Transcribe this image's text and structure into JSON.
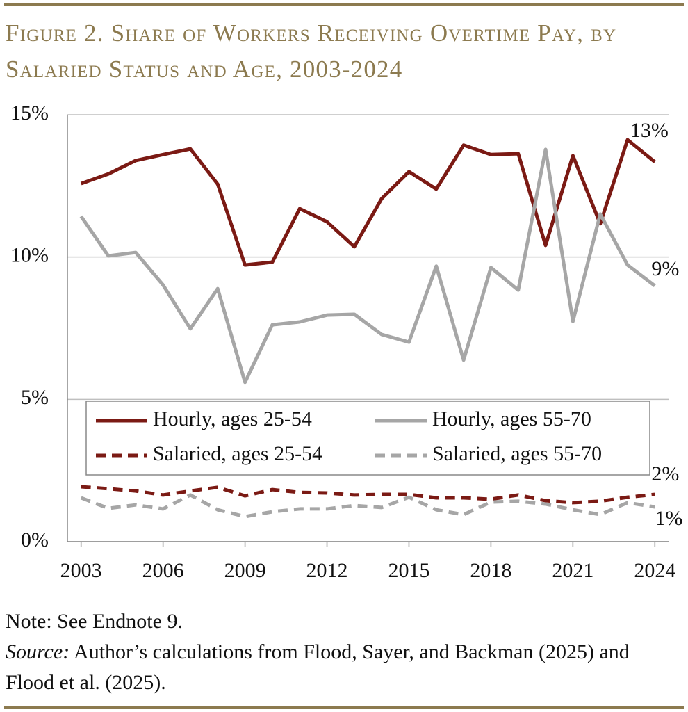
{
  "chart_data": {
    "type": "line",
    "title": "Figure 2. Share of Workers Receiving Overtime Pay, by Salaried Status and Age, 2003-2024",
    "x": [
      2003,
      2004,
      2005,
      2006,
      2007,
      2008,
      2009,
      2010,
      2011,
      2012,
      2013,
      2014,
      2015,
      2016,
      2017,
      2018,
      2019,
      2020,
      2021,
      2022,
      2023,
      2024
    ],
    "xlim": [
      2002.5,
      2024.5
    ],
    "xticks": [
      2003,
      2006,
      2009,
      2012,
      2015,
      2018,
      2021,
      2024
    ],
    "ylim": [
      0,
      15
    ],
    "yticks": [
      {
        "value": 0,
        "label": "0%"
      },
      {
        "value": 5,
        "label": "5%"
      },
      {
        "value": 10,
        "label": "10%"
      },
      {
        "value": 15,
        "label": "15%"
      }
    ],
    "grid": true,
    "series": [
      {
        "name": "Hourly, ages 25-54",
        "color": "#7b1a14",
        "dash": false,
        "end_label": "13%",
        "values": [
          12.58,
          12.92,
          13.39,
          13.6,
          13.8,
          12.56,
          9.72,
          9.82,
          11.7,
          11.24,
          10.36,
          12.05,
          13.0,
          12.39,
          13.93,
          13.6,
          13.63,
          10.41,
          13.56,
          11.17,
          14.12,
          13.34
        ]
      },
      {
        "name": "Hourly, ages 55-70",
        "color": "#a6a6a6",
        "dash": false,
        "end_label": "9%",
        "values": [
          11.43,
          10.04,
          10.16,
          9.02,
          7.48,
          8.89,
          5.6,
          7.62,
          7.72,
          7.96,
          7.99,
          7.28,
          7.01,
          9.68,
          6.38,
          9.63,
          8.84,
          13.78,
          7.74,
          11.51,
          9.72,
          8.99
        ]
      },
      {
        "name": "Salaried, ages 25-54",
        "color": "#7b1a14",
        "dash": true,
        "end_label": "2%",
        "values": [
          1.93,
          1.86,
          1.78,
          1.64,
          1.78,
          1.91,
          1.61,
          1.83,
          1.73,
          1.71,
          1.64,
          1.66,
          1.66,
          1.54,
          1.54,
          1.49,
          1.64,
          1.44,
          1.37,
          1.42,
          1.56,
          1.66
        ]
      },
      {
        "name": "Salaried, ages 55-70",
        "color": "#a6a6a6",
        "dash": true,
        "end_label": "1%",
        "values": [
          1.54,
          1.17,
          1.29,
          1.15,
          1.64,
          1.12,
          0.88,
          1.05,
          1.15,
          1.15,
          1.27,
          1.2,
          1.56,
          1.12,
          0.95,
          1.39,
          1.42,
          1.32,
          1.12,
          0.95,
          1.37,
          1.22
        ]
      }
    ],
    "note": "Note: See Endnote 9.",
    "source_label": "Source:",
    "source_text": "Author’s calculations from Flood, Sayer, and Backman (2025) and Flood et al. (2025)."
  }
}
